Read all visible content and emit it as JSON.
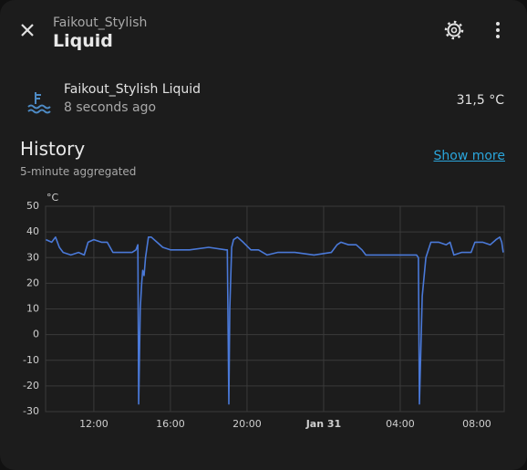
{
  "header": {
    "subtitle": "Faikout_Stylish",
    "title": "Liquid"
  },
  "entity": {
    "name": "Faikout_Stylish Liquid",
    "updated": "8 seconds ago",
    "state": "31,5 °C"
  },
  "history": {
    "title": "History",
    "note": "5-minute aggregated",
    "link": "Show more"
  },
  "chart_data": {
    "type": "line",
    "y_label": "°C",
    "x": [
      9.5,
      9.8,
      10.0,
      10.2,
      10.4,
      10.8,
      11.2,
      11.5,
      11.7,
      12.0,
      12.4,
      12.7,
      13.0,
      13.5,
      14.0,
      14.2,
      14.3,
      14.34,
      14.42,
      14.5,
      14.55,
      14.62,
      14.7,
      14.85,
      15.0,
      15.3,
      15.6,
      16.0,
      17.0,
      18.0,
      18.9,
      18.97,
      19.05,
      19.1,
      19.2,
      19.3,
      19.5,
      19.8,
      20.2,
      20.6,
      21.05,
      21.6,
      22.5,
      23.5,
      24.4,
      24.7,
      24.9,
      25.3,
      25.7,
      26.0,
      26.2,
      27.0,
      28.0,
      28.85,
      28.95,
      29.0,
      29.15,
      29.34,
      29.6,
      30.0,
      30.4,
      30.6,
      30.8,
      31.2,
      31.7,
      31.9,
      32.3,
      32.7,
      33.0,
      33.2,
      33.3,
      33.38
    ],
    "series": [
      {
        "name": "Faikout_Stylish Liquid",
        "color": "#4a79d8",
        "values": [
          37,
          36,
          38,
          34,
          32,
          31,
          32,
          31,
          36,
          37,
          36,
          36,
          32,
          32,
          32,
          33,
          35,
          -27,
          10,
          20,
          25,
          23,
          30,
          38,
          38,
          36,
          34,
          33,
          33,
          34,
          33,
          33,
          -27,
          10,
          34,
          37,
          38,
          36,
          33,
          33,
          31,
          32,
          32,
          31,
          32,
          35,
          36,
          35,
          35,
          33,
          31,
          31,
          31,
          31,
          30,
          -27,
          15,
          30,
          36,
          36,
          35,
          36,
          31,
          32,
          32,
          36,
          36,
          35,
          37,
          38,
          36,
          32
        ]
      }
    ],
    "xlim": [
      9.48,
      33.43
    ],
    "xticks": [
      {
        "value": 12,
        "label": "12:00"
      },
      {
        "value": 16,
        "label": "16:00"
      },
      {
        "value": 20,
        "label": "20:00"
      },
      {
        "value": 24,
        "label": "Jan 31"
      },
      {
        "value": 28,
        "label": "04:00"
      },
      {
        "value": 32,
        "label": "08:00"
      }
    ],
    "ylim": [
      -30,
      50
    ],
    "yticks": [
      -30,
      -20,
      -10,
      0,
      10,
      20,
      30,
      40,
      50
    ],
    "grid": true
  }
}
